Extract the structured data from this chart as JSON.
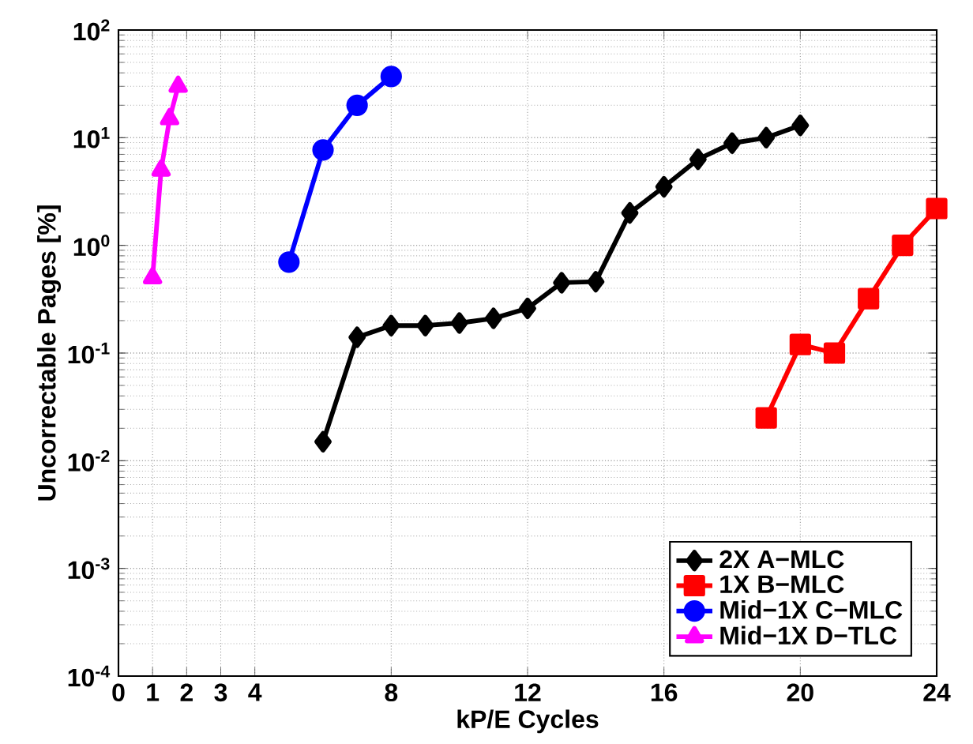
{
  "chart_data": {
    "type": "line",
    "xlabel": "kP/E Cycles",
    "ylabel": "Uncorrectable Pages [%]",
    "log": "y",
    "grid": true,
    "legend": "bottom right",
    "line_style": "solid",
    "xlim": [
      0,
      24
    ],
    "xticks": [
      0,
      1,
      2,
      3,
      4,
      8,
      12,
      16,
      20,
      24
    ],
    "ylim": [
      0.0001,
      100
    ],
    "yticks": [
      {
        "value": 0.0001,
        "label": "10$^{-4}$"
      },
      {
        "value": 0.001,
        "label": "10$^{-3}$"
      },
      {
        "value": 0.01,
        "label": "10$^{-2}$"
      },
      {
        "value": 0.1,
        "label": "10$^{-1}$"
      },
      {
        "value": 1,
        "label": "10$^{0}$"
      },
      {
        "value": 10,
        "label": "10$^{1}$"
      },
      {
        "value": 100,
        "label": "10$^{2}$"
      }
    ],
    "series": [
      {
        "name": "2X A−MLC",
        "color": "#000000",
        "marker": "diamond",
        "x": [
          6,
          7,
          8,
          9,
          10,
          11,
          12,
          13,
          14,
          15,
          16,
          17,
          18,
          19,
          20
        ],
        "values": [
          0.015,
          0.14,
          0.18,
          0.18,
          0.19,
          0.21,
          0.26,
          0.45,
          0.46,
          2.0,
          3.5,
          6.3,
          8.9,
          10,
          13
        ]
      },
      {
        "name": "1X B−MLC",
        "color": "#ff0000",
        "marker": "square",
        "x": [
          19,
          20,
          21,
          22,
          23,
          24
        ],
        "values": [
          0.025,
          0.12,
          0.1,
          0.32,
          1.0,
          2.2
        ]
      },
      {
        "name": "Mid−1X C−MLC",
        "color": "#0000ff",
        "marker": "circle",
        "x": [
          5,
          6,
          7,
          8
        ],
        "values": [
          0.7,
          7.7,
          20,
          37
        ]
      },
      {
        "name": "Mid−1X D−TLC",
        "color": "#ff00ff",
        "marker": "triangle",
        "x": [
          1,
          1.25,
          1.5,
          1.75
        ],
        "values": [
          0.5,
          5,
          15,
          30
        ]
      }
    ]
  }
}
